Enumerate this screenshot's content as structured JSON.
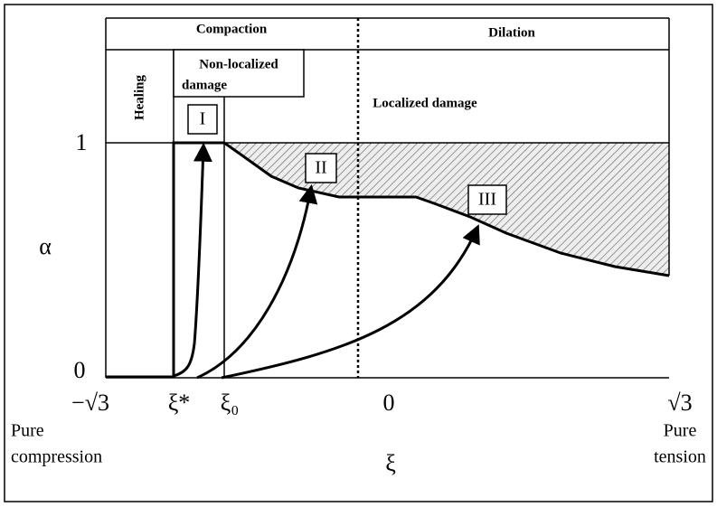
{
  "header": {
    "compaction": "Compaction",
    "dilation": "Dilation"
  },
  "regions": {
    "healing": "Healing",
    "non_localized": [
      "Non-localized",
      "damage"
    ],
    "localized": "Localized damage"
  },
  "paths": {
    "labels": [
      "I",
      "II",
      "III"
    ]
  },
  "y_axis": {
    "label": "α",
    "ticks": [
      "1",
      "0"
    ]
  },
  "x_axis": {
    "label": "ξ",
    "ticks": [
      "−√3",
      "ξ*",
      "ξ₀",
      "0",
      "√3"
    ],
    "left_note": [
      "Pure",
      "compression"
    ],
    "right_note": [
      "Pure",
      "tension"
    ]
  }
}
